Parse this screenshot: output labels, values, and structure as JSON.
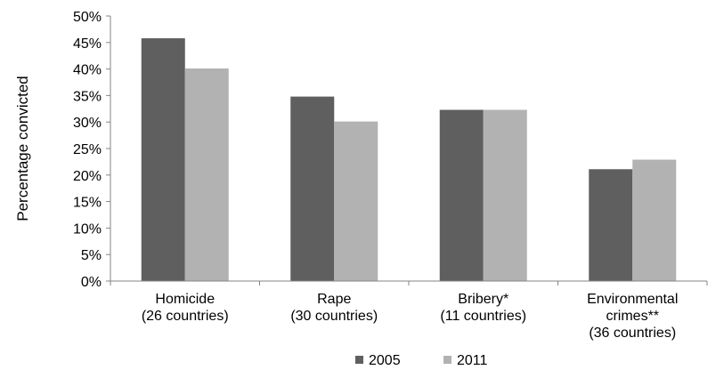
{
  "chart_data": {
    "type": "bar",
    "title": "",
    "xlabel": "",
    "ylabel": "Percentage convicted",
    "ylim": [
      0,
      50
    ],
    "y_ticks": [
      "0%",
      "5%",
      "10%",
      "15%",
      "20%",
      "25%",
      "30%",
      "35%",
      "40%",
      "45%",
      "50%"
    ],
    "categories": [
      [
        "Homicide",
        "(26 countries)"
      ],
      [
        "Rape",
        "(30 countries)"
      ],
      [
        "Bribery*",
        "(11 countries)"
      ],
      [
        "Environmental",
        "crimes**",
        "(36 countries)"
      ]
    ],
    "series": [
      {
        "name": "2005",
        "color": "#5f5f5f",
        "values": [
          45.8,
          34.8,
          32.3,
          21.1
        ]
      },
      {
        "name": "2011",
        "color": "#b2b2b2",
        "values": [
          40.1,
          30.1,
          32.3,
          22.9
        ]
      }
    ],
    "grid": false,
    "legend": "bottom"
  }
}
